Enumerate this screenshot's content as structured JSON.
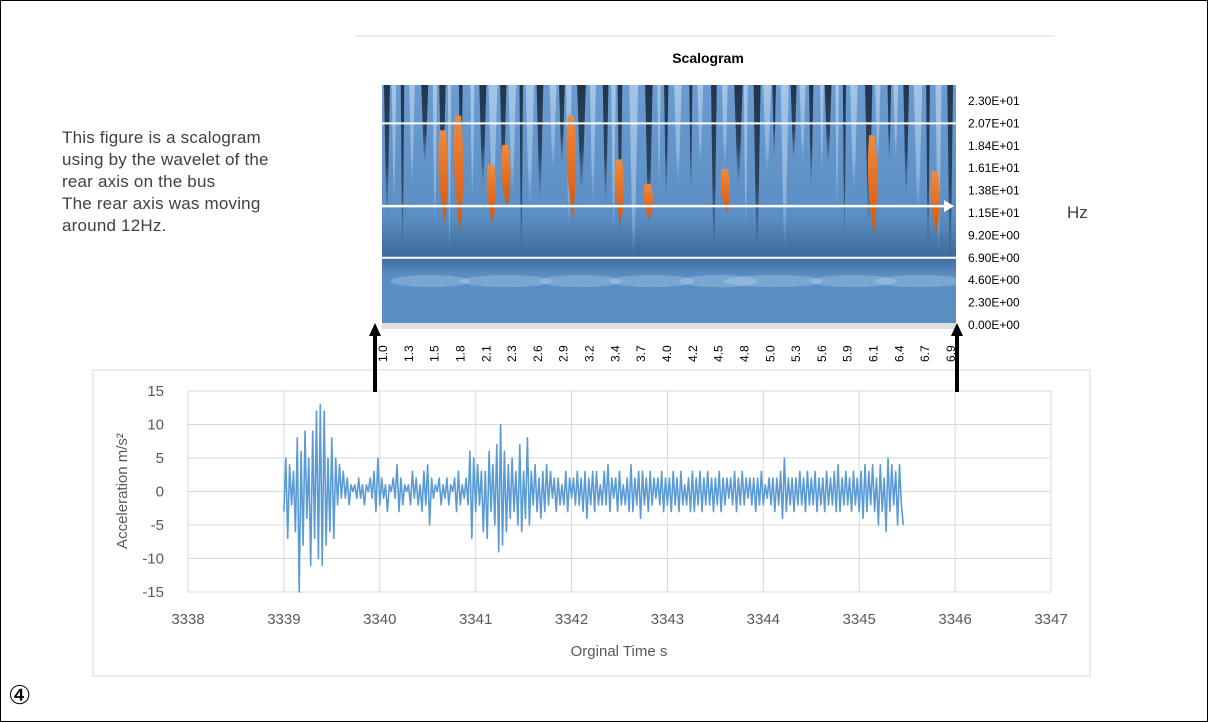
{
  "description": "This figure is a scalogram\nusing by the wavelet of the\nrear axis on the bus\nThe rear axis was moving\naround 12Hz.",
  "hz_label": "Hz",
  "figure_marker": "④",
  "colors": {
    "scalogram_base": "#5b8fc4",
    "scalogram_dark": "#1e2f44",
    "scalogram_light": "#a9c9e8",
    "scalogram_hot": "#e66a1f",
    "signal_line": "#5b9bd5",
    "grid": "#d9d9d9",
    "axis_text": "#595959"
  },
  "chart_data": [
    {
      "type": "heatmap",
      "title": "Scalogram",
      "y_tick_labels": [
        "2.30E+01",
        "2.07E+01",
        "1.84E+01",
        "1.61E+01",
        "1.38E+01",
        "1.15E+01",
        "9.20E+00",
        "6.90E+00",
        "4.60E+00",
        "2.30E+00",
        "0.00E+00"
      ],
      "x_tick_labels": [
        "1.0",
        "1.3",
        "1.5",
        "1.8",
        "2.1",
        "2.3",
        "2.6",
        "2.9",
        "3.2",
        "3.4",
        "3.7",
        "4.0",
        "4.2",
        "4.5",
        "4.8",
        "5.0",
        "5.3",
        "5.6",
        "5.9",
        "6.1",
        "6.4",
        "6.7",
        "6.9"
      ],
      "ylim": [
        0,
        23.75
      ],
      "hot_spots": [
        {
          "t": 1.62,
          "f_min": 10.5,
          "f_max": 20.0
        },
        {
          "t": 1.78,
          "f_min": 9.6,
          "f_max": 21.5
        },
        {
          "t": 2.12,
          "f_min": 10.5,
          "f_max": 16.5
        },
        {
          "t": 2.27,
          "f_min": 12.0,
          "f_max": 18.5
        },
        {
          "t": 2.95,
          "f_min": 11.0,
          "f_max": 21.5
        },
        {
          "t": 3.45,
          "f_min": 10.5,
          "f_max": 17.0
        },
        {
          "t": 3.75,
          "f_min": 10.8,
          "f_max": 14.5
        },
        {
          "t": 4.55,
          "f_min": 11.5,
          "f_max": 16.0
        },
        {
          "t": 6.08,
          "f_min": 9.2,
          "f_max": 19.5
        },
        {
          "t": 6.73,
          "f_min": 9.5,
          "f_max": 15.8
        }
      ],
      "horizontal_lines_hz": [
        20.7,
        12.2,
        6.9
      ],
      "arrow_hz": 12.2
    },
    {
      "type": "line",
      "xlabel": "Orginal Time s",
      "ylabel": "Acceleration m/s²",
      "xlim": [
        3338,
        3347
      ],
      "ylim": [
        -15,
        15
      ],
      "x_ticks": [
        3338,
        3339,
        3340,
        3341,
        3342,
        3343,
        3344,
        3345,
        3346,
        3347
      ],
      "y_ticks": [
        15,
        10,
        5,
        0,
        -5,
        -10,
        -15
      ],
      "grid": true,
      "series": [
        {
          "x_start": 3339.0,
          "dt": 0.02,
          "values": [
            -3,
            5,
            -7,
            4,
            -2,
            3,
            -6,
            8,
            -15,
            6,
            -8,
            9,
            -4,
            5,
            -11,
            9,
            -7,
            12,
            -10,
            13,
            -11,
            12,
            -8,
            5,
            -6,
            8,
            -7,
            5,
            -2,
            4,
            -1,
            3,
            -1,
            2,
            -2,
            1,
            0,
            1,
            -1,
            2,
            -1,
            1,
            -2,
            1,
            0,
            2,
            -1,
            3,
            -3,
            5,
            -2,
            2,
            -1,
            1,
            -3,
            1,
            0,
            2,
            -1,
            4,
            -3,
            2,
            -2,
            1,
            0,
            1,
            -2,
            3,
            -1,
            2,
            -2,
            1,
            -3,
            3,
            -2,
            4,
            -5,
            2,
            -1,
            1,
            0,
            2,
            -2,
            1,
            -1,
            2,
            -2,
            1,
            0,
            2,
            -3,
            3,
            -2,
            1,
            -1,
            2,
            -2,
            6,
            -7,
            5,
            -3,
            4,
            -2,
            3,
            -6,
            3,
            -7,
            6,
            -3,
            4,
            -5,
            7,
            -9,
            10,
            -8,
            6,
            -6,
            4,
            -4,
            5,
            -3,
            3,
            -5,
            7,
            -6,
            3,
            -4,
            8,
            -5,
            3,
            -2,
            4,
            -3,
            2,
            -4,
            3,
            -3,
            4,
            -2,
            3,
            -1,
            2,
            -3,
            2,
            -2,
            1,
            -2,
            3,
            -3,
            2,
            -1,
            2,
            -2,
            3,
            -2,
            2,
            -3,
            3,
            -4,
            2,
            -2,
            3,
            -3,
            3,
            -2,
            1,
            -2,
            3,
            -2,
            4,
            -3,
            2,
            -1,
            2,
            -3,
            3,
            -2,
            1,
            -2,
            2,
            -3,
            4,
            -3,
            2,
            -2,
            3,
            -4,
            3,
            -2,
            2,
            -3,
            3,
            -2,
            2,
            -1,
            2,
            -2,
            3,
            -3,
            2,
            -2,
            2,
            -3,
            3,
            -2,
            2,
            -3,
            3,
            -2,
            1,
            -2,
            2,
            -3,
            3,
            -3,
            2,
            -2,
            3,
            -3,
            2,
            -2,
            3,
            -2,
            2,
            -3,
            2,
            -2,
            3,
            -3,
            2,
            -2,
            2,
            -1,
            2,
            -2,
            3,
            -3,
            2,
            -2,
            3,
            -2,
            2,
            -1,
            2,
            -2,
            2,
            -3,
            2,
            -2,
            3,
            -2,
            1,
            -1,
            2,
            -2,
            2,
            -3,
            2,
            -2,
            3,
            -4,
            5,
            -3,
            2,
            -2,
            2,
            -3,
            2,
            -2,
            3,
            -2,
            2,
            -3,
            3,
            -2,
            2,
            -2,
            3,
            -3,
            2,
            -2,
            2,
            -3,
            3,
            -2,
            2,
            -2,
            3,
            -3,
            4,
            -3,
            2,
            -2,
            3,
            -2,
            2,
            -3,
            3,
            -2,
            2,
            -3,
            3,
            -4,
            4,
            -3,
            3,
            -2,
            4,
            -3,
            2,
            -5,
            4,
            -3,
            2,
            -6,
            5,
            -3,
            4,
            -2,
            3,
            -5,
            4,
            -2,
            -5
          ]
        }
      ]
    }
  ]
}
